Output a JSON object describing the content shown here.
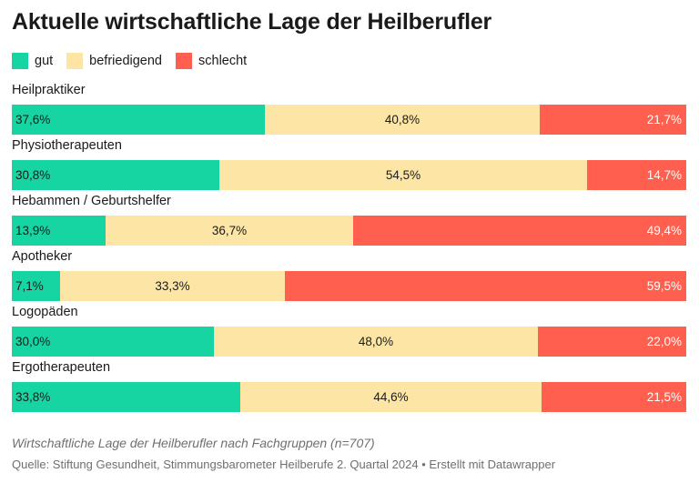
{
  "chart_data": {
    "type": "bar",
    "orientation": "horizontal",
    "stacked": true,
    "title": "Aktuelle wirtschaftliche Lage der Heilberufler",
    "caption": "Wirtschaftliche Lage der Heilberufler nach Fachgruppen (n=707)",
    "source": "Quelle: Stiftung Gesundheit, Stimmungsbarometer Heilberufe 2. Quartal 2024 • Erstellt mit Datawrapper",
    "legend_position": "top-left",
    "grid": false,
    "xlim": [
      0,
      100
    ],
    "categories": [
      "Heilpraktiker",
      "Physiotherapeuten",
      "Hebammen / Geburtshelfer",
      "Apotheker",
      "Logopäden",
      "Ergotherapeuten"
    ],
    "series": [
      {
        "name": "gut",
        "color": "#16d5a3",
        "values": [
          37.6,
          30.8,
          13.9,
          7.1,
          30.0,
          33.8
        ],
        "labels": [
          "37,6%",
          "30,8%",
          "13,9%",
          "7,1%",
          "30,0%",
          "33,8%"
        ]
      },
      {
        "name": "befriedigend",
        "color": "#fde6a5",
        "values": [
          40.8,
          54.5,
          36.7,
          33.3,
          48.0,
          44.6
        ],
        "labels": [
          "40,8%",
          "54,5%",
          "36,7%",
          "33,3%",
          "48,0%",
          "44,6%"
        ]
      },
      {
        "name": "schlecht",
        "color": "#ff5f4e",
        "values": [
          21.7,
          14.7,
          49.4,
          59.5,
          22.0,
          21.5
        ],
        "labels": [
          "21,7%",
          "14,7%",
          "49,4%",
          "59,5%",
          "22,0%",
          "21,5%"
        ]
      }
    ]
  }
}
